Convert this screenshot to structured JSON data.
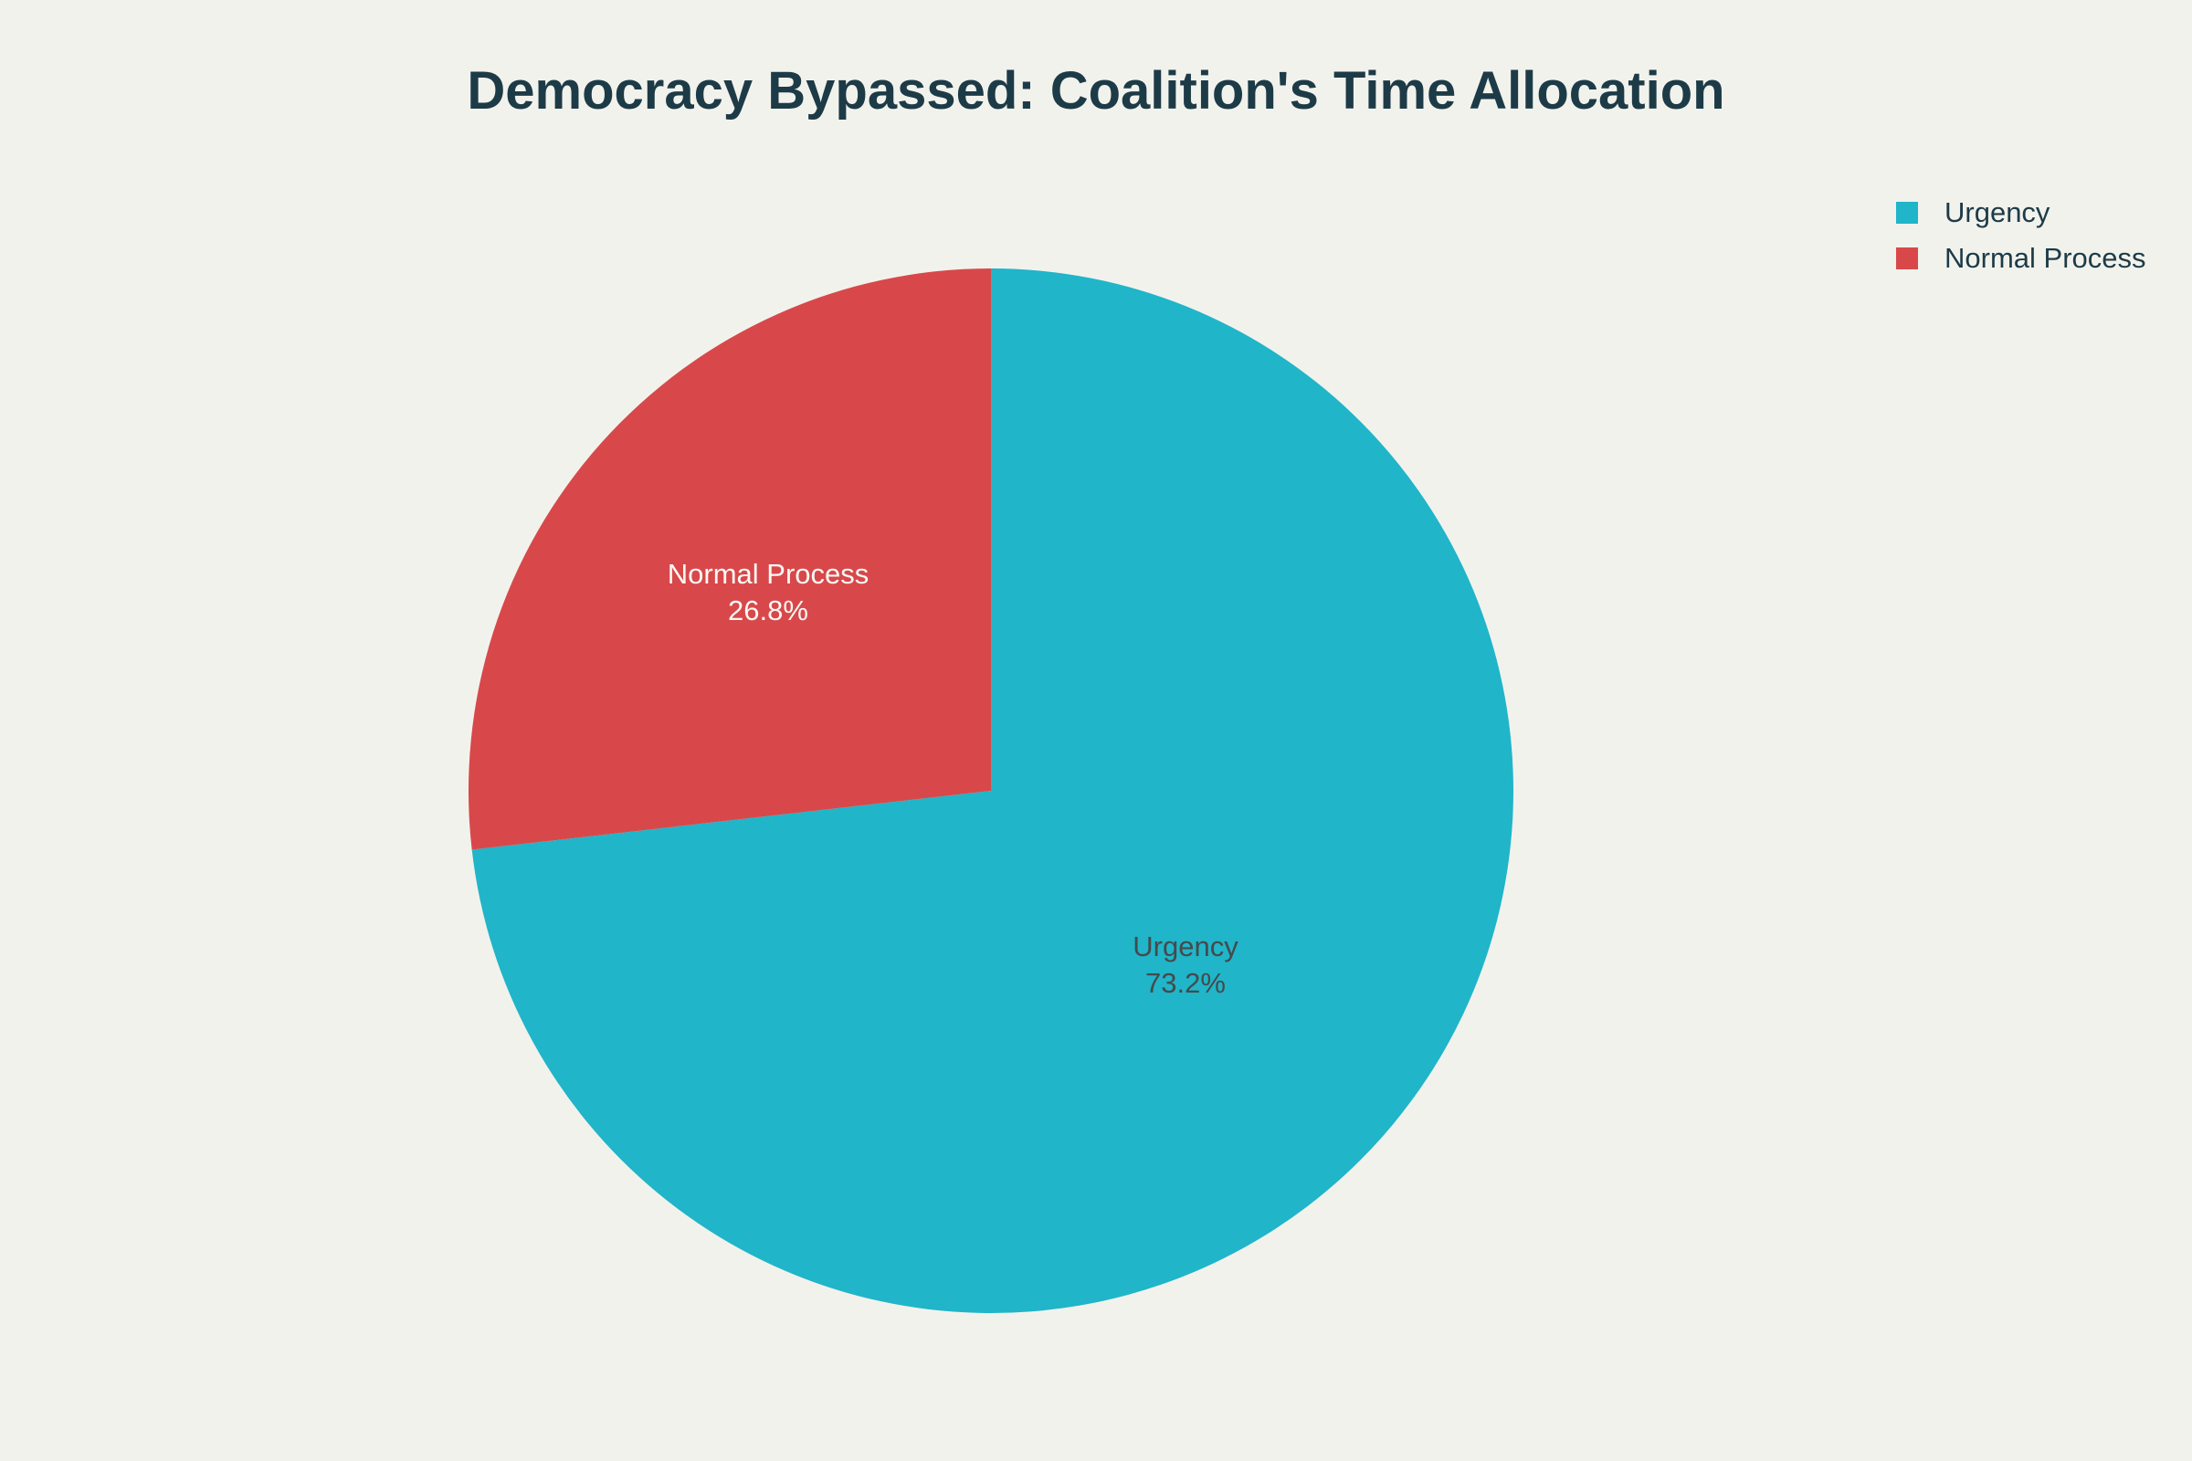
{
  "page": {
    "background_color": "#f2f2ed"
  },
  "chart_data": {
    "type": "pie",
    "title": "Democracy Bypassed: Coalition's Time Allocation",
    "direction": "clockwise",
    "start_angle": "12-o-clock",
    "legend_position": "top-right",
    "slices": [
      {
        "label": "Urgency",
        "value": 73.2,
        "pct_label": "73.2%",
        "color": "#20b5c9",
        "label_text_color": "#454a4c"
      },
      {
        "label": "Normal Process",
        "value": 26.8,
        "pct_label": "26.8%",
        "color": "#d8484a",
        "label_text_color": "#f8f8f4"
      }
    ],
    "legend": {
      "entries": [
        {
          "label": "Urgency",
          "color": "#20b5c9"
        },
        {
          "label": "Normal Process",
          "color": "#d8484a"
        }
      ]
    },
    "title_color": "#1d3b47"
  }
}
